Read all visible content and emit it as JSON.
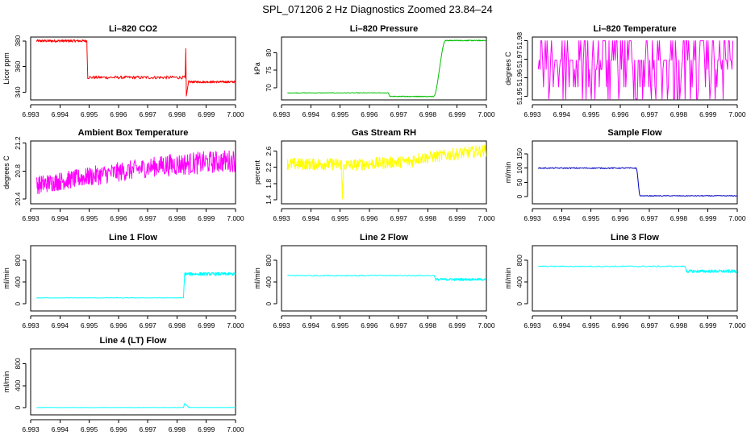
{
  "figure": {
    "title": "SPL_071206  2 Hz Diagnostics Zoomed 23.84–24"
  },
  "chart_data": [
    {
      "id": "co2",
      "type": "line",
      "title": "Li–820 CO2",
      "ylabel": "Licor ppm",
      "color": "#ff0000",
      "xlim": [
        6.993,
        7.0
      ],
      "ylim": [
        334,
        383
      ],
      "xticks": [
        "6.993",
        "6.994",
        "6.995",
        "6.996",
        "6.997",
        "6.998",
        "6.999",
        "7.000"
      ],
      "yticks": [
        340,
        360,
        380
      ],
      "ytick_labels": [
        "340",
        "360",
        "380"
      ],
      "series": [
        {
          "name": "CO2",
          "segments": [
            {
              "x0": 6.9932,
              "x1": 6.99492,
              "y": 380,
              "amp": 1
            },
            {
              "x0": 6.99492,
              "x1": 6.99495,
              "y_from": 380,
              "y_to": 351
            },
            {
              "x0": 6.99495,
              "x1": 6.99828,
              "y": 351.5,
              "amp": 1.2
            },
            {
              "x0": 6.99828,
              "x1": 6.9983,
              "y_from": 351,
              "y_to": 374
            },
            {
              "x0": 6.9983,
              "x1": 6.99832,
              "y_from": 374,
              "y_to": 337
            },
            {
              "x0": 6.99832,
              "x1": 6.9984,
              "y_from": 337,
              "y_to": 349
            },
            {
              "x0": 6.9984,
              "x1": 7.0,
              "y": 348,
              "amp": 0.8
            }
          ]
        }
      ]
    },
    {
      "id": "pressure",
      "type": "line",
      "title": "Li–820 Pressure",
      "ylabel": "kPa",
      "color": "#00c000",
      "xlim": [
        6.993,
        7.0
      ],
      "ylim": [
        66.5,
        84.5
      ],
      "xticks": [
        "6.993",
        "6.994",
        "6.995",
        "6.996",
        "6.997",
        "6.998",
        "6.999",
        "7.000"
      ],
      "yticks": [
        70,
        75,
        80
      ],
      "ytick_labels": [
        "70",
        "75",
        "80"
      ],
      "series": [
        {
          "name": "Pressure",
          "segments": [
            {
              "x0": 6.9932,
              "x1": 6.99665,
              "y": 68.5,
              "amp": 0.1
            },
            {
              "x0": 6.99665,
              "x1": 6.9967,
              "y_from": 68.5,
              "y_to": 67.5
            },
            {
              "x0": 6.9967,
              "x1": 6.9982,
              "y": 67.5,
              "amp": 0.1
            },
            {
              "x0": 6.9982,
              "x1": 6.9986,
              "y_from": 67.5,
              "y_to": 83.5,
              "curve": "s"
            },
            {
              "x0": 6.9986,
              "x1": 7.0,
              "y": 83.5,
              "amp": 0.12
            }
          ]
        }
      ]
    },
    {
      "id": "temperature",
      "type": "line",
      "title": "Li–820 Temperature",
      "ylabel": "degrees C",
      "color": "#ff00ff",
      "xlim": [
        6.993,
        7.0
      ],
      "ylim": [
        51.948,
        51.982
      ],
      "xticks": [
        "6.993",
        "6.994",
        "6.995",
        "6.996",
        "6.997",
        "6.998",
        "6.999",
        "7.000"
      ],
      "yticks": [
        51.95,
        51.96,
        51.97,
        51.98
      ],
      "ytick_labels": [
        "51.95",
        "51.96",
        "51.97",
        "51.98"
      ],
      "series": [
        {
          "name": "Temperature",
          "segments": [
            {
              "x0": 6.9932,
              "x1": 6.99985,
              "y": 51.98,
              "switch": true,
              "alts": [
                51.98,
                51.98,
                51.9695,
                51.9695,
                51.9645,
                51.955,
                51.9485
              ]
            }
          ]
        }
      ]
    },
    {
      "id": "ambient",
      "type": "line",
      "title": "Ambient Box Temperature",
      "ylabel": "degrees C",
      "color": "#ff00ff",
      "xlim": [
        6.993,
        7.0
      ],
      "ylim": [
        20.33,
        21.23
      ],
      "xticks": [
        "6.993",
        "6.994",
        "6.995",
        "6.996",
        "6.997",
        "6.998",
        "6.999",
        "7.000"
      ],
      "yticks": [
        20.4,
        20.8,
        21.2
      ],
      "ytick_labels": [
        "20.4",
        "20.8",
        "21.2"
      ],
      "series": [
        {
          "name": "Ambient",
          "segments": [
            {
              "x0": 6.9932,
              "x1": 6.995,
              "y_from": 20.6,
              "y_to": 20.72,
              "amp": 0.13
            },
            {
              "x0": 6.995,
              "x1": 6.9975,
              "y_from": 20.72,
              "y_to": 20.88,
              "amp": 0.14
            },
            {
              "x0": 6.9975,
              "x1": 7.0,
              "y_from": 20.88,
              "y_to": 20.95,
              "amp": 0.16
            }
          ]
        }
      ]
    },
    {
      "id": "rh",
      "type": "line",
      "title": "Gas Stream RH",
      "ylabel": "percent",
      "color": "#ffff00",
      "xlim": [
        6.993,
        7.0
      ],
      "ylim": [
        1.3,
        2.85
      ],
      "xticks": [
        "6.993",
        "6.994",
        "6.995",
        "6.996",
        "6.997",
        "6.998",
        "6.999",
        "7.000"
      ],
      "yticks": [
        1.4,
        1.8,
        2.2,
        2.6
      ],
      "ytick_labels": [
        "1.4",
        "1.8",
        "2.2",
        "2.6"
      ],
      "series": [
        {
          "name": "RH",
          "segments": [
            {
              "x0": 6.9932,
              "x1": 6.99505,
              "y": 2.28,
              "amp": 0.15
            },
            {
              "x0": 6.99505,
              "x1": 6.99508,
              "y_from": 2.28,
              "y_to": 1.42
            },
            {
              "x0": 6.99508,
              "x1": 6.99512,
              "y_from": 1.42,
              "y_to": 2.25
            },
            {
              "x0": 6.99512,
              "x1": 6.9975,
              "y_from": 2.25,
              "y_to": 2.35,
              "amp": 0.15
            },
            {
              "x0": 6.9975,
              "x1": 7.0,
              "y_from": 2.4,
              "y_to": 2.62,
              "amp": 0.15
            }
          ]
        }
      ]
    },
    {
      "id": "sample",
      "type": "line",
      "title": "Sample Flow",
      "ylabel": "ml/min",
      "color": "#0000c0",
      "xlim": [
        6.993,
        7.0
      ],
      "ylim": [
        -25,
        195
      ],
      "xticks": [
        "6.993",
        "6.994",
        "6.995",
        "6.996",
        "6.997",
        "6.998",
        "6.999",
        "7.000"
      ],
      "yticks": [
        0,
        50,
        100,
        150
      ],
      "ytick_labels": [
        "0",
        "50",
        "100",
        "150"
      ],
      "series": [
        {
          "name": "Sample",
          "segments": [
            {
              "x0": 6.9932,
              "x1": 6.99655,
              "y": 100,
              "amp": 2
            },
            {
              "x0": 6.99655,
              "x1": 6.99668,
              "y_from": 99,
              "y_to": 4,
              "curve": "s"
            },
            {
              "x0": 6.99668,
              "x1": 7.0,
              "y": 3,
              "amp": 1.5
            }
          ]
        }
      ]
    },
    {
      "id": "line1",
      "type": "line",
      "title": "Line 1 Flow",
      "ylabel": "ml/min",
      "color": "#00ffff",
      "xlim": [
        6.993,
        7.0
      ],
      "ylim": [
        -130,
        1070
      ],
      "xticks": [
        "6.993",
        "6.994",
        "6.995",
        "6.996",
        "6.997",
        "6.998",
        "6.999",
        "7.000"
      ],
      "yticks": [
        0,
        400,
        800
      ],
      "ytick_labels": [
        "0",
        "400",
        "800"
      ],
      "series": [
        {
          "name": "Line 1",
          "segments": [
            {
              "x0": 6.9932,
              "x1": 6.99822,
              "y": 110,
              "amp": 4
            },
            {
              "x0": 6.99822,
              "x1": 6.99826,
              "y_from": 110,
              "y_to": 540
            },
            {
              "x0": 6.99826,
              "x1": 7.0,
              "y": 550,
              "amp": 30
            }
          ]
        }
      ]
    },
    {
      "id": "line2",
      "type": "line",
      "title": "Line 2 Flow",
      "ylabel": "ml/min",
      "color": "#00ffff",
      "xlim": [
        6.993,
        7.0
      ],
      "ylim": [
        -130,
        1070
      ],
      "xticks": [
        "6.993",
        "6.994",
        "6.995",
        "6.996",
        "6.997",
        "6.998",
        "6.999",
        "7.000"
      ],
      "yticks": [
        0,
        400,
        800
      ],
      "ytick_labels": [
        "0",
        "400",
        "800"
      ],
      "series": [
        {
          "name": "Line 2",
          "segments": [
            {
              "x0": 6.9932,
              "x1": 6.99822,
              "y": 520,
              "amp": 10
            },
            {
              "x0": 6.99822,
              "x1": 6.99826,
              "y_from": 520,
              "y_to": 460
            },
            {
              "x0": 6.99826,
              "x1": 7.0,
              "y": 450,
              "amp": 22
            }
          ]
        }
      ]
    },
    {
      "id": "line3",
      "type": "line",
      "title": "Line 3 Flow",
      "ylabel": "ml/min",
      "color": "#00ffff",
      "xlim": [
        6.993,
        7.0
      ],
      "ylim": [
        -130,
        1070
      ],
      "xticks": [
        "6.993",
        "6.994",
        "6.995",
        "6.996",
        "6.997",
        "6.998",
        "6.999",
        "7.000"
      ],
      "yticks": [
        0,
        400,
        800
      ],
      "ytick_labels": [
        "0",
        "400",
        "800"
      ],
      "series": [
        {
          "name": "Line 3",
          "segments": [
            {
              "x0": 6.9932,
              "x1": 6.99822,
              "y": 690,
              "amp": 10
            },
            {
              "x0": 6.99822,
              "x1": 6.99826,
              "y_from": 690,
              "y_to": 610
            },
            {
              "x0": 6.99826,
              "x1": 7.0,
              "y": 600,
              "amp": 28
            }
          ]
        }
      ]
    },
    {
      "id": "line4",
      "type": "line",
      "title": "Line 4 (LT) Flow",
      "ylabel": "ml/min",
      "color": "#00ffff",
      "xlim": [
        6.993,
        7.0
      ],
      "ylim": [
        -130,
        1070
      ],
      "xticks": [
        "6.993",
        "6.994",
        "6.995",
        "6.996",
        "6.997",
        "6.998",
        "6.999",
        "7.000"
      ],
      "yticks": [
        0,
        400,
        800
      ],
      "ytick_labels": [
        "0",
        "400",
        "800"
      ],
      "series": [
        {
          "name": "Line 4 (LT)",
          "segments": [
            {
              "x0": 6.9932,
              "x1": 6.99822,
              "y": 3,
              "amp": 2
            },
            {
              "x0": 6.99822,
              "x1": 6.99826,
              "y_from": 3,
              "y_to": 75
            },
            {
              "x0": 6.99826,
              "x1": 6.9984,
              "y_from": 75,
              "y_to": 10
            },
            {
              "x0": 6.9984,
              "x1": 7.0,
              "y": 4,
              "amp": 2
            }
          ]
        }
      ]
    }
  ]
}
